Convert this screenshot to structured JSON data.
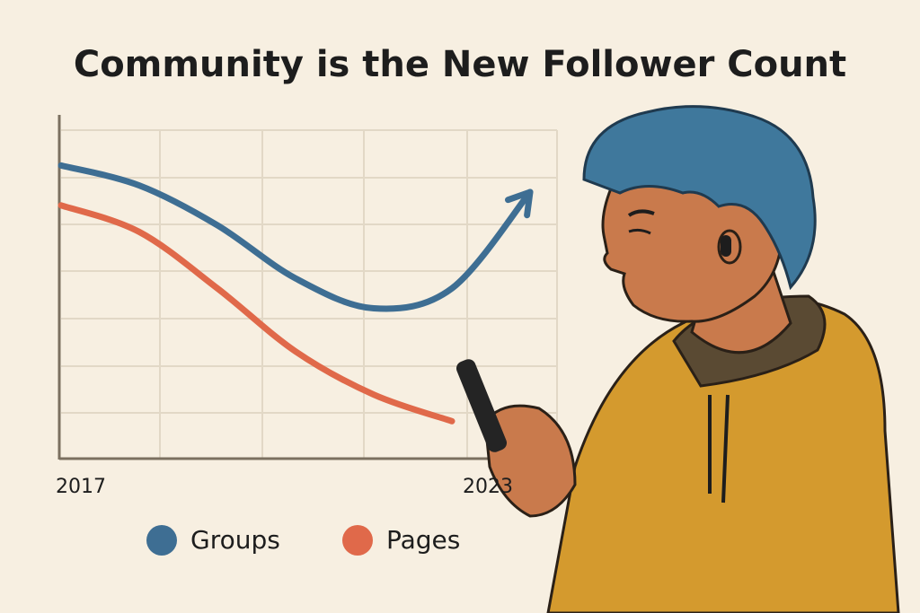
{
  "chart_data": {
    "type": "line",
    "title": "Community is the New Follower Count",
    "categories": [
      "2017",
      null,
      null,
      null,
      null,
      null,
      "2023"
    ],
    "series": [
      {
        "name": "Groups",
        "color": "#3e6e93",
        "values": [
          88,
          82,
          70,
          54,
          45,
          51,
          80
        ]
      },
      {
        "name": "Pages",
        "color": "#e0694a",
        "values": [
          76,
          68,
          51,
          32,
          19,
          11,
          null
        ]
      }
    ],
    "ylim": [
      0,
      100
    ]
  }
}
